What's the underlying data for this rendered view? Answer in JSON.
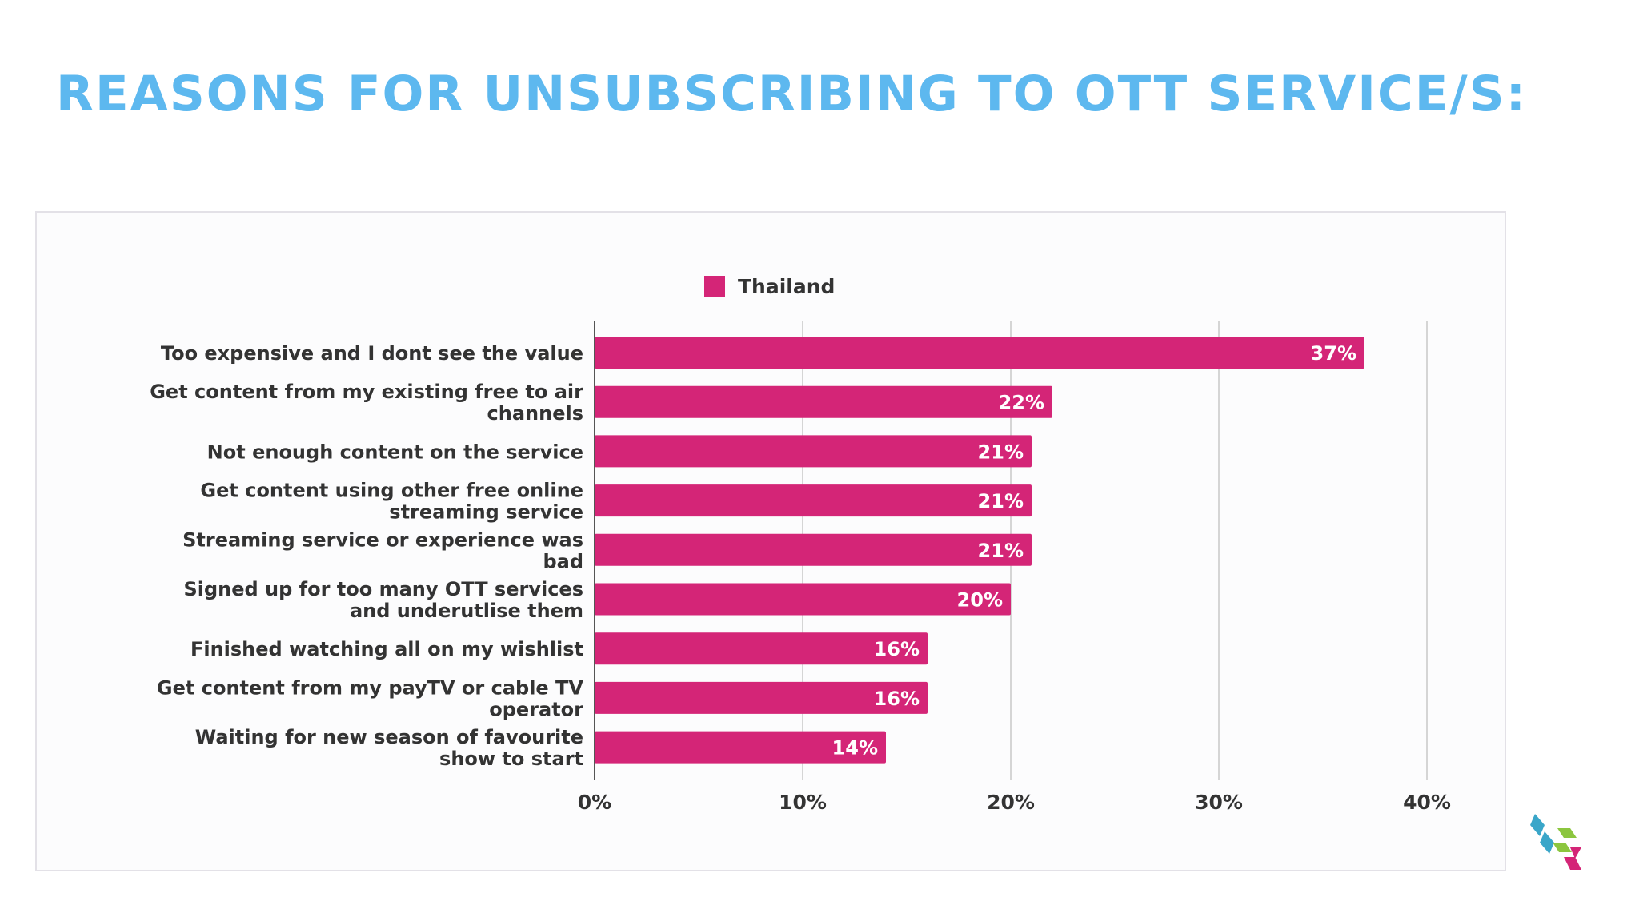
{
  "title": "REASONS FOR UNSUBSCRIBING TO OTT SERVICE/S:",
  "colors": {
    "title": "#5db8ef",
    "bar": "#d42577",
    "bar_label": "#ffffff",
    "text": "#333333",
    "grid": "#c8c8c8",
    "axis": "#555555"
  },
  "logo": {
    "icon": "cube-logo-icon",
    "colors": [
      "#3aa6c9",
      "#8cc63f",
      "#d42577"
    ]
  },
  "chart_data": {
    "type": "bar",
    "orientation": "horizontal",
    "categories": [
      [
        "Too expensive and I dont see the value"
      ],
      [
        "Get content from my existing free to air",
        "channels"
      ],
      [
        "Not enough content on the service"
      ],
      [
        "Get content using other free online",
        "streaming service"
      ],
      [
        "Streaming service or experience was",
        "bad"
      ],
      [
        "Signed up for too many OTT services",
        "and underutlise them"
      ],
      [
        "Finished watching all on my wishlist"
      ],
      [
        "Get content from my payTV or cable TV",
        "operator"
      ],
      [
        "Waiting for new season of favourite",
        "show to start"
      ]
    ],
    "series": [
      {
        "name": "Thailand",
        "values": [
          37,
          22,
          21,
          21,
          21,
          20,
          16,
          16,
          14
        ]
      }
    ],
    "data_labels": [
      "37%",
      "22%",
      "21%",
      "21%",
      "21%",
      "20%",
      "16%",
      "16%",
      "14%"
    ],
    "x_ticks": [
      "0%",
      "10%",
      "20%",
      "30%",
      "40%"
    ],
    "xlim": [
      0,
      40
    ],
    "grid": true,
    "legend_position": "top-center"
  }
}
